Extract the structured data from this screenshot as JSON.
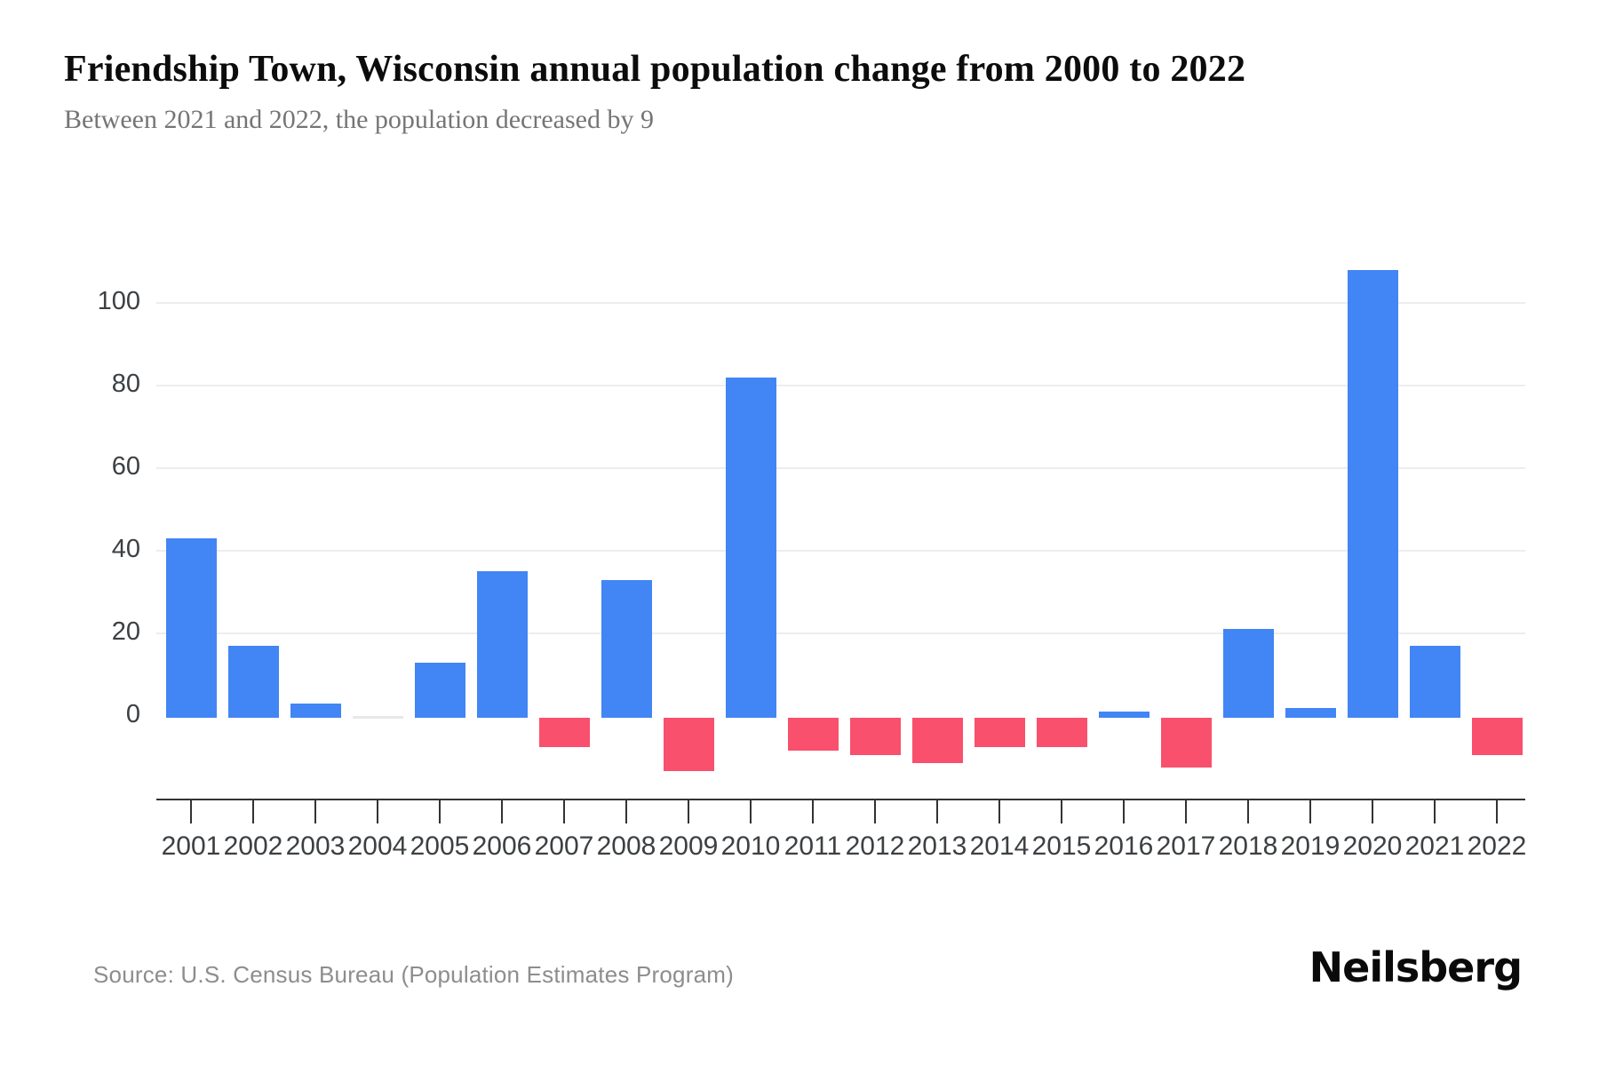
{
  "header": {
    "title": "Friendship Town, Wisconsin annual population change from 2000 to 2022",
    "subtitle": "Between 2021 and 2022, the population decreased by 9"
  },
  "footer": {
    "source": "Source: U.S. Census Bureau (Population Estimates Program)",
    "brand": "Neilsberg"
  },
  "chart_data": {
    "type": "bar",
    "title": "Friendship Town, Wisconsin annual population change from 2000 to 2022",
    "subtitle": "Between 2021 and 2022, the population decreased by 9",
    "categories": [
      "2001",
      "2002",
      "2003",
      "2004",
      "2005",
      "2006",
      "2007",
      "2008",
      "2009",
      "2010",
      "2011",
      "2012",
      "2013",
      "2014",
      "2015",
      "2016",
      "2017",
      "2018",
      "2019",
      "2020",
      "2021",
      "2022"
    ],
    "values": [
      43,
      17,
      3,
      0,
      13,
      35,
      -7,
      33,
      -13,
      82,
      -8,
      -9,
      -11,
      -7,
      -7,
      1,
      -12,
      21,
      2,
      108,
      17,
      -9
    ],
    "xlabel": "",
    "ylabel": "",
    "yticks": [
      0,
      20,
      40,
      60,
      80,
      100
    ],
    "ylim": [
      -20,
      115
    ],
    "grid": "horizontal",
    "legend": "none",
    "colors": {
      "positive": "#4285f4",
      "negative": "#f8506d",
      "zero": "#e8e8e8"
    }
  }
}
